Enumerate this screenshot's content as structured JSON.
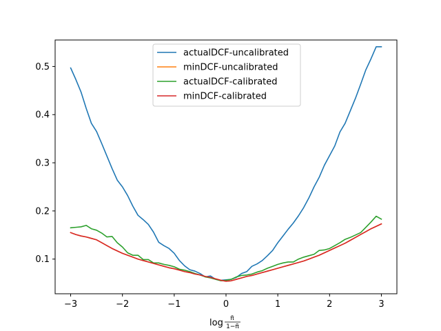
{
  "chart_data": {
    "type": "line",
    "title": "",
    "xlabel": "log π̃/(1−π̃)",
    "xlabel_parts": {
      "prefix": "log",
      "numerator": "π̃",
      "denominator": "1−π̃"
    },
    "ylabel": "",
    "xlim": [
      -3.3,
      3.3
    ],
    "ylim": [
      0.028,
      0.555
    ],
    "x_ticks": [
      -3,
      -2,
      -1,
      0,
      1,
      2,
      3
    ],
    "x_tick_labels": [
      "−3",
      "−2",
      "−1",
      "0",
      "1",
      "2",
      "3"
    ],
    "y_ticks": [
      0.1,
      0.2,
      0.3,
      0.4,
      0.5
    ],
    "y_tick_labels": [
      "0.1",
      "0.2",
      "0.3",
      "0.4",
      "0.5"
    ],
    "grid": false,
    "legend_position": "top-center",
    "x": [
      -3.0,
      -2.9,
      -2.8,
      -2.7,
      -2.6,
      -2.5,
      -2.4,
      -2.3,
      -2.2,
      -2.1,
      -2.0,
      -1.9,
      -1.8,
      -1.7,
      -1.6,
      -1.5,
      -1.4,
      -1.3,
      -1.2,
      -1.1,
      -1.0,
      -0.9,
      -0.8,
      -0.7,
      -0.6,
      -0.5,
      -0.4,
      -0.3,
      -0.2,
      -0.1,
      0.0,
      0.1,
      0.2,
      0.3,
      0.4,
      0.5,
      0.6,
      0.7,
      0.8,
      0.9,
      1.0,
      1.1,
      1.2,
      1.3,
      1.4,
      1.5,
      1.6,
      1.7,
      1.8,
      1.9,
      2.0,
      2.1,
      2.2,
      2.3,
      2.4,
      2.5,
      2.6,
      2.7,
      2.8,
      2.9,
      3.0
    ],
    "series": [
      {
        "name": "actualDCF-uncalibrated",
        "color": "#1f77b4",
        "values": [
          0.497,
          0.473,
          0.447,
          0.413,
          0.382,
          0.365,
          0.34,
          0.314,
          0.288,
          0.264,
          0.25,
          0.232,
          0.21,
          0.191,
          0.182,
          0.172,
          0.156,
          0.135,
          0.128,
          0.122,
          0.112,
          0.097,
          0.086,
          0.078,
          0.075,
          0.07,
          0.063,
          0.065,
          0.058,
          0.056,
          0.057,
          0.058,
          0.062,
          0.07,
          0.074,
          0.085,
          0.09,
          0.097,
          0.107,
          0.118,
          0.134,
          0.148,
          0.162,
          0.175,
          0.19,
          0.207,
          0.227,
          0.25,
          0.27,
          0.295,
          0.315,
          0.335,
          0.364,
          0.382,
          0.408,
          0.434,
          0.463,
          0.493,
          0.516,
          0.541,
          0.541
        ]
      },
      {
        "name": "minDCF-uncalibrated",
        "color": "#ff7f0e",
        "values": [
          0.155,
          0.151,
          0.148,
          0.146,
          0.143,
          0.14,
          0.134,
          0.128,
          0.122,
          0.117,
          0.112,
          0.108,
          0.104,
          0.1,
          0.097,
          0.094,
          0.091,
          0.088,
          0.085,
          0.082,
          0.08,
          0.077,
          0.074,
          0.072,
          0.069,
          0.067,
          0.064,
          0.062,
          0.059,
          0.056,
          0.054,
          0.055,
          0.058,
          0.061,
          0.064,
          0.066,
          0.069,
          0.072,
          0.075,
          0.078,
          0.081,
          0.084,
          0.087,
          0.09,
          0.093,
          0.096,
          0.1,
          0.104,
          0.108,
          0.113,
          0.118,
          0.123,
          0.128,
          0.133,
          0.139,
          0.145,
          0.151,
          0.157,
          0.163,
          0.168,
          0.173
        ]
      },
      {
        "name": "actualDCF-calibrated",
        "color": "#2ca02c",
        "values": [
          0.165,
          0.166,
          0.167,
          0.17,
          0.163,
          0.16,
          0.154,
          0.146,
          0.147,
          0.134,
          0.125,
          0.113,
          0.108,
          0.108,
          0.099,
          0.099,
          0.092,
          0.092,
          0.089,
          0.087,
          0.084,
          0.079,
          0.077,
          0.074,
          0.07,
          0.067,
          0.063,
          0.061,
          0.058,
          0.055,
          0.056,
          0.058,
          0.063,
          0.066,
          0.067,
          0.069,
          0.073,
          0.076,
          0.081,
          0.085,
          0.089,
          0.092,
          0.094,
          0.094,
          0.1,
          0.104,
          0.107,
          0.11,
          0.118,
          0.119,
          0.122,
          0.128,
          0.134,
          0.141,
          0.145,
          0.15,
          0.155,
          0.166,
          0.177,
          0.189,
          0.183
        ]
      },
      {
        "name": "minDCF-calibrated",
        "color": "#d62728",
        "values": [
          0.155,
          0.151,
          0.148,
          0.146,
          0.143,
          0.14,
          0.134,
          0.128,
          0.122,
          0.117,
          0.112,
          0.108,
          0.104,
          0.1,
          0.097,
          0.094,
          0.091,
          0.088,
          0.085,
          0.082,
          0.08,
          0.077,
          0.074,
          0.072,
          0.069,
          0.067,
          0.064,
          0.062,
          0.059,
          0.056,
          0.054,
          0.055,
          0.058,
          0.061,
          0.064,
          0.066,
          0.069,
          0.072,
          0.075,
          0.078,
          0.081,
          0.084,
          0.087,
          0.09,
          0.093,
          0.096,
          0.1,
          0.104,
          0.108,
          0.113,
          0.118,
          0.123,
          0.128,
          0.133,
          0.139,
          0.145,
          0.151,
          0.157,
          0.163,
          0.168,
          0.173
        ]
      }
    ]
  }
}
